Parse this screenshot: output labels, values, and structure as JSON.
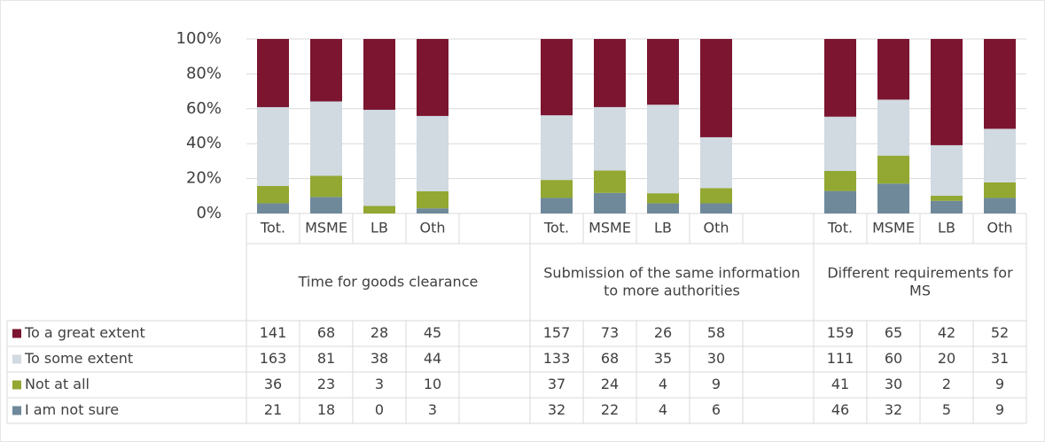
{
  "chart_data": {
    "type": "stacked_bar_100",
    "groups": [
      "Time for goods clearance",
      "Submission of the same information to more authorities",
      "Different requirements for MS"
    ],
    "categories": [
      "Tot.",
      "MSME",
      "LB",
      "Oth",
      "Tot.",
      "MSME",
      "LB",
      "Oth",
      "Tot.",
      "MSME",
      "LB",
      "Oth"
    ],
    "series": [
      {
        "name": "To a great extent",
        "color": "#7b1530",
        "values": [
          141,
          68,
          28,
          45,
          157,
          73,
          26,
          58,
          159,
          65,
          42,
          52
        ]
      },
      {
        "name": "To some extent",
        "color": "#d1d9e1",
        "values": [
          163,
          81,
          38,
          44,
          133,
          68,
          35,
          30,
          111,
          60,
          20,
          31
        ]
      },
      {
        "name": "Not at all",
        "color": "#92a832",
        "values": [
          36,
          23,
          3,
          10,
          37,
          24,
          4,
          9,
          41,
          30,
          2,
          9
        ]
      },
      {
        "name": "I am not sure",
        "color": "#6f899b",
        "values": [
          21,
          18,
          0,
          3,
          32,
          22,
          4,
          6,
          46,
          32,
          5,
          9
        ]
      }
    ],
    "ylim": [
      0,
      100
    ],
    "yticks": [
      {
        "value": 0,
        "label": "0%"
      },
      {
        "value": 20,
        "label": "20%"
      },
      {
        "value": 40,
        "label": "40%"
      },
      {
        "value": 60,
        "label": "60%"
      },
      {
        "value": 80,
        "label": "80%"
      },
      {
        "value": 100,
        "label": "100%"
      }
    ],
    "grid": true
  }
}
